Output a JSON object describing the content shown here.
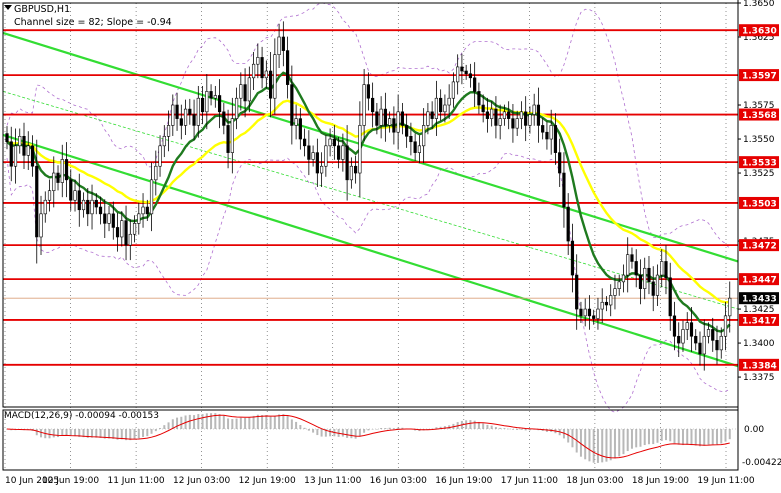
{
  "header": {
    "symbol": "GBPUSD,H1",
    "channel_info": "Channel size = 82; Slope = -0.94"
  },
  "macd": {
    "label": "MACD(12,26,9) -0.00094 -0.00153",
    "tick_labels": [
      "0.00",
      "-0.00422"
    ]
  },
  "colors": {
    "level_line": "#e60000",
    "level_box": "#e60000",
    "current_price_box": "#000000",
    "channel_line": "#33dd33",
    "ma_fast": "#1e7a1e",
    "ma_slow": "#ffff00",
    "bollinger": "#b070d0",
    "candle": "#000000",
    "macd_hist": "#b8b8b8",
    "macd_signal": "#e60000"
  },
  "chart_data": {
    "type": "candlestick",
    "symbol": "GBPUSD",
    "timeframe": "H1",
    "ylim": [
      1.3353,
      1.365
    ],
    "price_ticks": [
      1.365,
      1.3625,
      1.3575,
      1.355,
      1.3525,
      1.3475,
      1.3425,
      1.34,
      1.3375
    ],
    "levels": [
      1.363,
      1.3597,
      1.3568,
      1.3533,
      1.3503,
      1.3472,
      1.3447,
      1.3417,
      1.3384
    ],
    "current_price": 1.3433,
    "x_labels": [
      "10 Jun 2025",
      "10 Jun 19:00",
      "11 Jun 11:00",
      "12 Jun 03:00",
      "12 Jun 19:00",
      "13 Jun 11:00",
      "16 Jun 03:00",
      "16 Jun 19:00",
      "17 Jun 11:00",
      "18 Jun 03:00",
      "18 Jun 19:00",
      "19 Jun 11:00"
    ],
    "close": [
      1.3548,
      1.353,
      1.3545,
      1.3552,
      1.3538,
      1.3545,
      1.353,
      1.3478,
      1.3495,
      1.3505,
      1.3512,
      1.3525,
      1.3518,
      1.3535,
      1.352,
      1.3505,
      1.3512,
      1.3498,
      1.3505,
      1.3495,
      1.3505,
      1.35,
      1.3495,
      1.3488,
      1.3495,
      1.3485,
      1.3478,
      1.349,
      1.3472,
      1.348,
      1.3488,
      1.3495,
      1.35,
      1.3495,
      1.352,
      1.353,
      1.3545,
      1.3552,
      1.356,
      1.3575,
      1.3565,
      1.356,
      1.3572,
      1.3568,
      1.356,
      1.358,
      1.357,
      1.3585,
      1.358,
      1.3582,
      1.357,
      1.356,
      1.354,
      1.3565,
      1.358,
      1.359,
      1.3578,
      1.3595,
      1.3605,
      1.361,
      1.3595,
      1.36,
      1.358,
      1.3612,
      1.3625,
      1.3615,
      1.359,
      1.356,
      1.3565,
      1.355,
      1.3545,
      1.3535,
      1.354,
      1.3525,
      1.353,
      1.3545,
      1.355,
      1.3545,
      1.3535,
      1.3545,
      1.352,
      1.353,
      1.3525,
      1.356,
      1.359,
      1.358,
      1.357,
      1.356,
      1.3572,
      1.356,
      1.3565,
      1.3555,
      1.357,
      1.356,
      1.3552,
      1.3548,
      1.354,
      1.3545,
      1.356,
      1.357,
      1.3565,
      1.358,
      1.357,
      1.3575,
      1.358,
      1.3592,
      1.3603,
      1.36,
      1.3598,
      1.3595,
      1.3585,
      1.3575,
      1.357,
      1.3565,
      1.3572,
      1.356,
      1.3565,
      1.357,
      1.3565,
      1.3558,
      1.3565,
      1.357,
      1.356,
      1.3568,
      1.3575,
      1.356,
      1.3555,
      1.355,
      1.356,
      1.354,
      1.3525,
      1.35,
      1.3475,
      1.345,
      1.3425,
      1.342,
      1.3425,
      1.342,
      1.3418,
      1.3425,
      1.343,
      1.3428,
      1.3435,
      1.344,
      1.3445,
      1.345,
      1.3465,
      1.346,
      1.345,
      1.344,
      1.3455,
      1.3445,
      1.3435,
      1.345,
      1.346,
      1.3448,
      1.342,
      1.3405,
      1.34,
      1.341,
      1.3415,
      1.3405,
      1.34,
      1.3392,
      1.3405,
      1.341,
      1.3402,
      1.3395,
      1.3405,
      1.342,
      1.3433
    ]
  }
}
